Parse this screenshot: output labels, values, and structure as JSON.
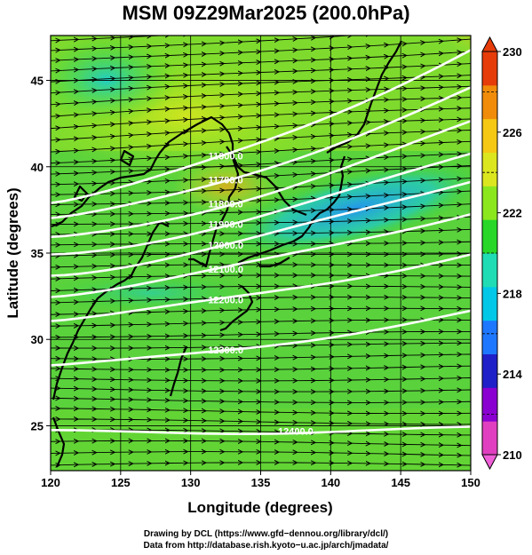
{
  "chart_data": {
    "type": "heatmap",
    "title": "MSM 09Z29Mar2025 (200.0hPa)",
    "xlabel": "Longitude (degrees)",
    "ylabel": "Latitude  (degrees)",
    "xlim": [
      120,
      150
    ],
    "ylim": [
      22.4,
      47.6
    ],
    "x_ticks": [
      "120",
      "125",
      "130",
      "135",
      "140",
      "145",
      "150"
    ],
    "y_ticks": [
      "25",
      "30",
      "35",
      "40",
      "45"
    ],
    "colorbar": {
      "min": 210,
      "max": 230,
      "ticks": [
        "210",
        "214",
        "218",
        "222",
        "226",
        "230"
      ],
      "colors": [
        "#e040c0",
        "#8a00d0",
        "#2020c8",
        "#1e78ff",
        "#00c8e6",
        "#20dcb4",
        "#28d728",
        "#8ce61e",
        "#dce61e",
        "#f5c814",
        "#f08c0a",
        "#e63c0a"
      ]
    },
    "contours": [
      {
        "label": "11600.0",
        "lat_at_120": 37.9,
        "lat_at_150": 46.8
      },
      {
        "label": "11700.0",
        "lat_at_120": 36.9,
        "lat_at_150": 44.5
      },
      {
        "label": "11800.0",
        "lat_at_120": 35.8,
        "lat_at_150": 42.5
      },
      {
        "label": "11900.0",
        "lat_at_120": 34.9,
        "lat_at_150": 40.7
      },
      {
        "label": "12000.0",
        "lat_at_120": 33.8,
        "lat_at_150": 39.2
      },
      {
        "label": "12100.0",
        "lat_at_120": 32.6,
        "lat_at_150": 37.4
      },
      {
        "label": "12200.0",
        "lat_at_120": 31.1,
        "lat_at_150": 35.0
      },
      {
        "label": "12300.0",
        "lat_at_120": 28.4,
        "lat_at_150": 31.6
      },
      {
        "label": "12400.0",
        "lat_at_120": 24.6,
        "lat_at_150": 24.8
      }
    ],
    "wind": "westerly streamlines",
    "grid": true
  },
  "footer": {
    "line1": "Drawing by DCL (https://www.gfd−dennou.org/library/dcl/)",
    "line2": "Data from http://database.rish.kyoto−u.ac.jp/arch/jmadata/"
  }
}
